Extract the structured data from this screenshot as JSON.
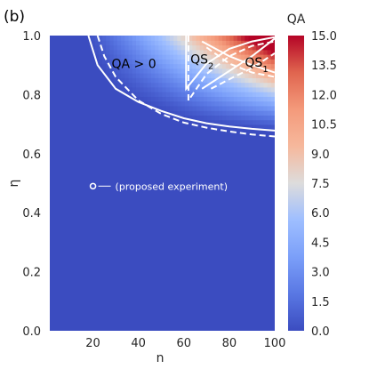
{
  "panel_label": "(b)",
  "chart_data": {
    "type": "heatmap",
    "xlabel": "n",
    "ylabel": "η",
    "xlim": [
      1,
      100
    ],
    "ylim": [
      0.0,
      1.0
    ],
    "x_ticks": [
      20,
      40,
      60,
      80,
      100
    ],
    "y_ticks": [
      0.0,
      0.2,
      0.4,
      0.6,
      0.8,
      1.0
    ],
    "x_tick_labels": [
      "20",
      "40",
      "60",
      "80",
      "100"
    ],
    "y_tick_labels": [
      "0.0",
      "0.2",
      "0.4",
      "0.6",
      "0.8",
      "1.0"
    ],
    "colorbar": {
      "label": "QA",
      "range": [
        0.0,
        15.0
      ],
      "ticks": [
        0.0,
        1.5,
        3.0,
        4.5,
        6.0,
        7.5,
        9.0,
        10.5,
        12.0,
        13.5,
        15.0
      ],
      "tick_labels": [
        "0.0",
        "1.5",
        "3.0",
        "4.5",
        "6.0",
        "7.5",
        "9.0",
        "10.5",
        "12.0",
        "13.5",
        "15.0"
      ],
      "colormap": "coolwarm"
    },
    "boundaries": [
      {
        "style": "solid",
        "points": [
          [
            18,
            1.0
          ],
          [
            22,
            0.9
          ],
          [
            30,
            0.82
          ],
          [
            40,
            0.775
          ],
          [
            50,
            0.745
          ],
          [
            60,
            0.72
          ],
          [
            70,
            0.703
          ],
          [
            80,
            0.692
          ],
          [
            90,
            0.684
          ],
          [
            100,
            0.678
          ]
        ]
      },
      {
        "style": "dashed",
        "points": [
          [
            22,
            1.0
          ],
          [
            25,
            0.93
          ],
          [
            30,
            0.86
          ],
          [
            40,
            0.78
          ],
          [
            50,
            0.735
          ],
          [
            60,
            0.705
          ],
          [
            70,
            0.688
          ],
          [
            80,
            0.675
          ],
          [
            90,
            0.665
          ],
          [
            100,
            0.658
          ]
        ]
      },
      {
        "style": "solid",
        "points": [
          [
            61,
            1.0
          ],
          [
            61,
            0.82
          ],
          [
            70,
            0.905
          ],
          [
            80,
            0.955
          ],
          [
            90,
            0.98
          ],
          [
            100,
            0.995
          ]
        ]
      },
      {
        "style": "solid",
        "points": [
          [
            68,
            0.82
          ],
          [
            80,
            0.88
          ],
          [
            90,
            0.93
          ],
          [
            100,
            0.99
          ]
        ]
      },
      {
        "style": "solid",
        "points": [
          [
            68,
            0.98
          ],
          [
            80,
            0.93
          ],
          [
            90,
            0.9
          ],
          [
            100,
            0.875
          ]
        ]
      },
      {
        "style": "dashed",
        "points": [
          [
            62,
            1.0
          ],
          [
            62,
            0.78
          ],
          [
            70,
            0.87
          ],
          [
            80,
            0.93
          ],
          [
            90,
            0.965
          ],
          [
            100,
            0.98
          ]
        ]
      },
      {
        "style": "dashed",
        "points": [
          [
            72,
            0.82
          ],
          [
            82,
            0.86
          ],
          [
            90,
            0.89
          ],
          [
            100,
            0.94
          ]
        ]
      },
      {
        "style": "dashed",
        "points": [
          [
            70,
            0.96
          ],
          [
            80,
            0.905
          ],
          [
            90,
            0.875
          ],
          [
            100,
            0.86
          ]
        ]
      }
    ],
    "annotations": [
      {
        "text": "QA > 0",
        "x": 38,
        "y": 0.905
      },
      {
        "text": "QS",
        "sub": "2",
        "x": 68,
        "y": 0.92
      },
      {
        "text": "QS",
        "sub": "1",
        "x": 92,
        "y": 0.91
      }
    ],
    "marker": {
      "x": 20,
      "y": 0.49,
      "label": "(proposed experiment)"
    }
  }
}
